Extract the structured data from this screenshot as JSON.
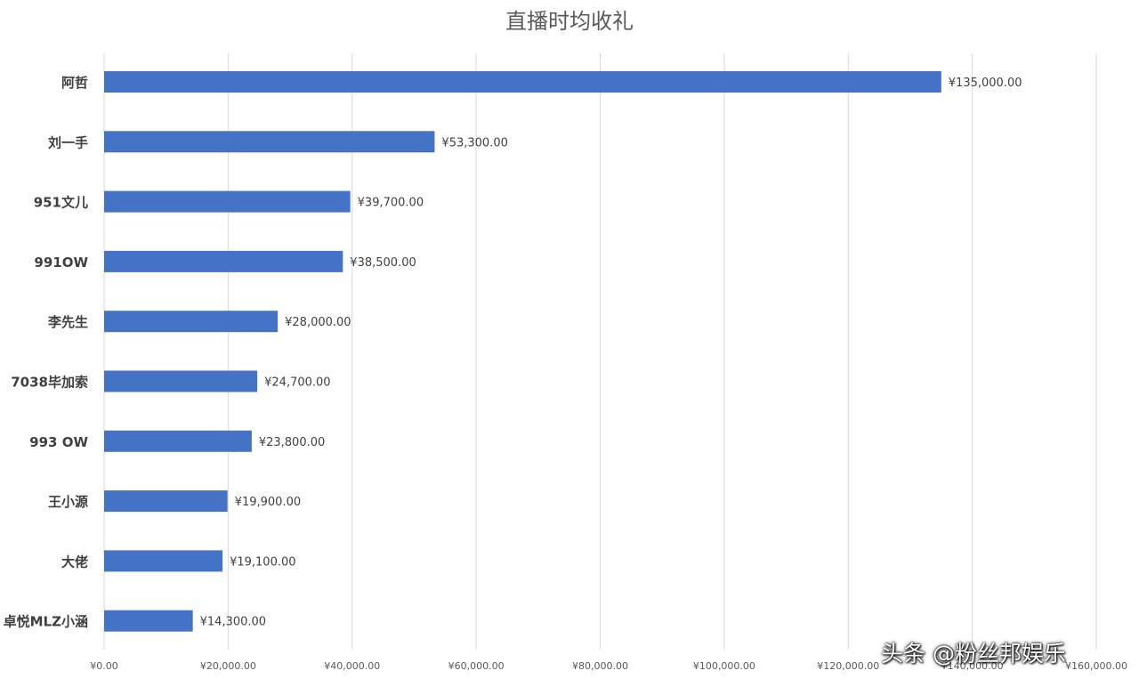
{
  "chart_data": {
    "type": "bar",
    "orientation": "horizontal",
    "title": "直播时均收礼",
    "categories": [
      "阿哲",
      "刘一手",
      "951文儿",
      "991OW",
      "李先生",
      "7038毕加索",
      "993 OW",
      "王小源",
      "大佬",
      "卓悦MLZ小涵"
    ],
    "values": [
      135000,
      53300,
      39700,
      38500,
      28000,
      24700,
      23800,
      19900,
      19100,
      14300
    ],
    "data_labels": [
      "¥135,000.00",
      "¥53,300.00",
      "¥39,700.00",
      "¥38,500.00",
      "¥28,000.00",
      "¥24,700.00",
      "¥23,800.00",
      "¥19,900.00",
      "¥19,100.00",
      "¥14,300.00"
    ],
    "xlim": [
      0,
      160000
    ],
    "x_ticks": [
      0,
      20000,
      40000,
      60000,
      80000,
      100000,
      120000,
      140000,
      160000
    ],
    "x_tick_labels": [
      "¥0.00",
      "¥20,000.00",
      "¥40,000.00",
      "¥60,000.00",
      "¥80,000.00",
      "¥100,000.00",
      "¥120,000.00",
      "¥140,000.00",
      "¥160,000.00"
    ],
    "xlabel": "",
    "ylabel": "",
    "grid": true,
    "legend": "none",
    "bar_color": "#4472C4",
    "grid_color": "#D9D9D9"
  },
  "watermark": {
    "text": "头条 @粉丝邦娱乐"
  }
}
